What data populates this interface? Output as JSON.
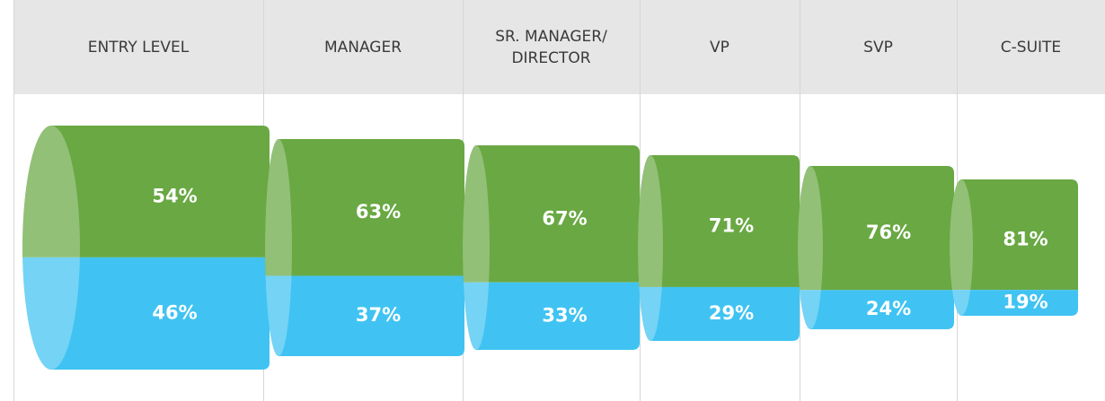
{
  "chart_data": {
    "type": "pipeline",
    "categories": [
      "ENTRY LEVEL",
      "MANAGER",
      "SR. MANAGER/\nDIRECTOR",
      "VP",
      "SVP",
      "C-SUITE"
    ],
    "series": [
      {
        "color": "#69a843",
        "values": [
          54,
          63,
          67,
          71,
          76,
          81
        ],
        "value_labels": [
          "54%",
          "63%",
          "67%",
          "71%",
          "76%",
          "81%"
        ]
      },
      {
        "color": "#40c3f2",
        "values": [
          46,
          37,
          33,
          29,
          24,
          19
        ],
        "value_labels": [
          "46%",
          "37%",
          "33%",
          "29%",
          "24%",
          "19%"
        ]
      }
    ]
  }
}
